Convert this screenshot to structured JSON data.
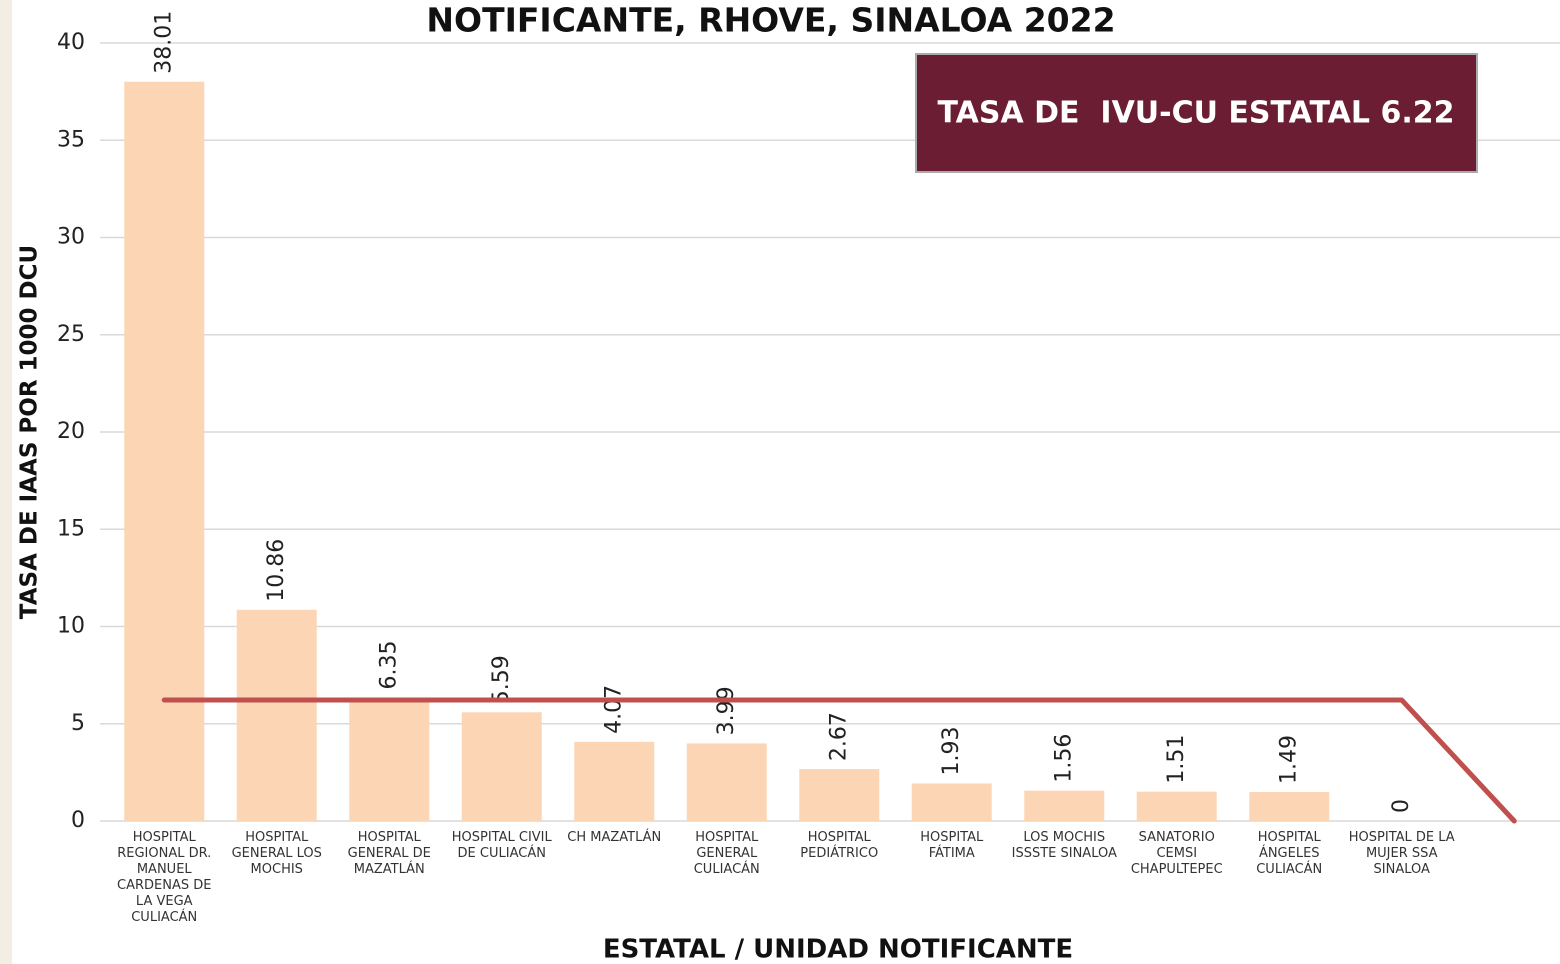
{
  "chart_data": {
    "type": "bar",
    "title": "NOTIFICANTE, RHOVE, SINALOA 2022",
    "y_label": "TASA DE IAAS POR 1000 DCU",
    "x_label": "ESTATAL / UNIDAD NOTIFICANTE",
    "annotation": "TASA DE  IVU-CU ESTATAL 6.22",
    "categories": [
      "HOSPITAL REGIONAL DR. MANUEL CARDENAS DE LA VEGA CULIACÁN",
      "HOSPITAL GENERAL LOS MOCHIS",
      "HOSPITAL GENERAL DE MAZATLÁN",
      "HOSPITAL CIVIL DE CULIACÁN",
      "CH MAZATLÁN",
      "HOSPITAL GENERAL CULIACÁN",
      "HOSPITAL PEDIÁTRICO",
      "HOSPITAL FÁTIMA",
      "LOS MOCHIS ISSSTE SINALOA",
      "SANATORIO CEMSI CHAPULTEPEC",
      "HOSPITAL ÁNGELES CULIACÁN",
      "HOSPITAL DE LA MUJER SSA SINALOA",
      null
    ],
    "series": [
      {
        "type": "bar",
        "color": "#fcd5b5",
        "values": [
          38.01,
          10.86,
          6.35,
          5.59,
          4.07,
          3.99,
          2.67,
          1.93,
          1.56,
          1.51,
          1.49,
          0,
          null
        ]
      },
      {
        "type": "line",
        "color": "#c0504d",
        "values": [
          6.22,
          6.22,
          6.22,
          6.22,
          6.22,
          6.22,
          6.22,
          6.22,
          6.22,
          6.22,
          6.22,
          6.22,
          0
        ]
      }
    ],
    "ylim": [
      0,
      40
    ],
    "yticks": [
      0,
      5,
      10,
      15,
      20,
      25,
      30,
      35,
      40
    ],
    "grid": true
  }
}
